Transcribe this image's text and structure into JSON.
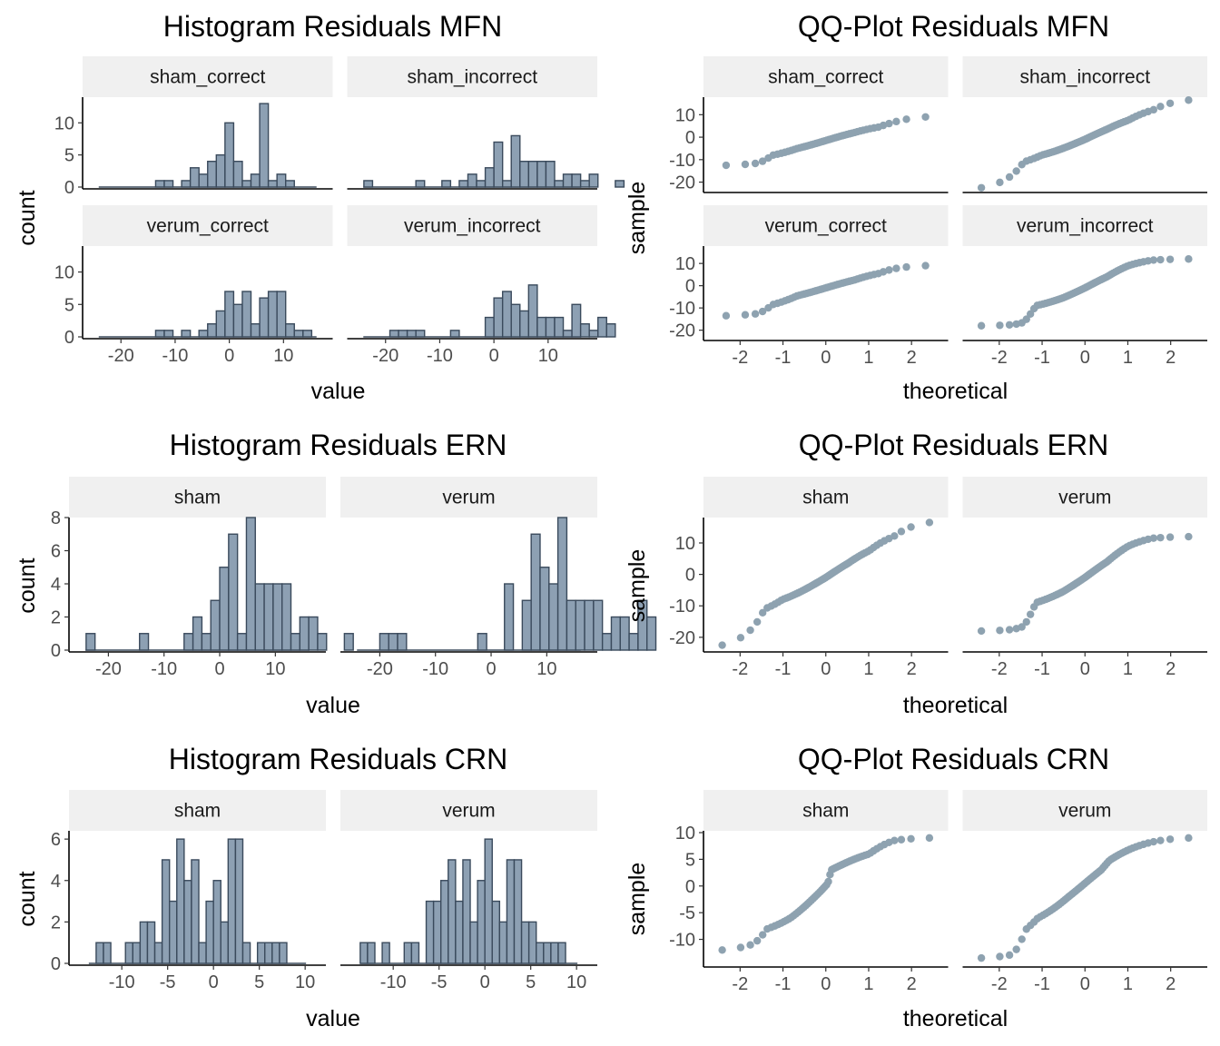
{
  "chart_data": [
    {
      "type": "histogram",
      "title": "Histogram Residuals MFN",
      "xlabel": "value",
      "ylabel": "count",
      "xlim": [
        -25,
        17
      ],
      "ylim": [
        0,
        14
      ],
      "xticks": [
        -20,
        -10,
        0,
        10
      ],
      "yticks": [
        0,
        5,
        10
      ],
      "bin_width": 1.6,
      "bins_start": -24,
      "panels": [
        {
          "name": "sham_correct",
          "start": -13.6,
          "counts": [
            1,
            1,
            0,
            1,
            3,
            2,
            4,
            5,
            10,
            4,
            1,
            2,
            13,
            1,
            2,
            1
          ]
        },
        {
          "name": "sham_incorrect",
          "start": -24,
          "counts": [
            1,
            0,
            0,
            0,
            0,
            0,
            1,
            0,
            0,
            1,
            0,
            1,
            2,
            1,
            3,
            7,
            1,
            8,
            4,
            4,
            4,
            4,
            1,
            2,
            2,
            1,
            2,
            0,
            0,
            1
          ]
        },
        {
          "name": "verum_correct",
          "start": -13.6,
          "counts": [
            1,
            1,
            0,
            1,
            0,
            1,
            2,
            4,
            7,
            5,
            7,
            2,
            6,
            7,
            7,
            2,
            1,
            1
          ]
        },
        {
          "name": "verum_incorrect",
          "start": -19.2,
          "counts": [
            1,
            1,
            1,
            1,
            0,
            0,
            0,
            1,
            0,
            0,
            0,
            3,
            6,
            7,
            5,
            4,
            8,
            3,
            3,
            3,
            1,
            5,
            2,
            1,
            3,
            2
          ]
        }
      ]
    },
    {
      "type": "scatter",
      "title": "QQ-Plot Residuals MFN",
      "xlabel": "theoretical",
      "ylabel": "sample",
      "xlim": [
        -2.6,
        2.6
      ],
      "ylim": [
        -23,
        17
      ],
      "xticks": [
        -2,
        -1,
        0,
        1,
        2
      ],
      "yticks": [
        -20,
        -10,
        0,
        10
      ],
      "panels": [
        {
          "name": "sham_correct",
          "n": 50,
          "quantiles": [
            [
              0,
              -12.5
            ],
            [
              0.05,
              -11.5
            ],
            [
              0.1,
              -8
            ],
            [
              0.25,
              -5
            ],
            [
              0.5,
              -1.5
            ],
            [
              0.75,
              2
            ],
            [
              0.9,
              4.5
            ],
            [
              0.95,
              6.5
            ],
            [
              1,
              9
            ]
          ]
        },
        {
          "name": "sham_incorrect",
          "n": 64,
          "quantiles": [
            [
              0,
              -22.5
            ],
            [
              0.04,
              -16.5
            ],
            [
              0.07,
              -11
            ],
            [
              0.15,
              -8
            ],
            [
              0.3,
              -5
            ],
            [
              0.5,
              -1
            ],
            [
              0.7,
              3.5
            ],
            [
              0.85,
              7.5
            ],
            [
              0.95,
              12
            ],
            [
              1,
              16.5
            ]
          ]
        },
        {
          "name": "verum_correct",
          "n": 50,
          "quantiles": [
            [
              0,
              -13.5
            ],
            [
              0.05,
              -12.5
            ],
            [
              0.1,
              -8.5
            ],
            [
              0.25,
              -4.5
            ],
            [
              0.5,
              -1
            ],
            [
              0.75,
              2.5
            ],
            [
              0.9,
              5.5
            ],
            [
              0.95,
              7.5
            ],
            [
              1,
              9
            ]
          ]
        },
        {
          "name": "verum_incorrect",
          "n": 64,
          "quantiles": [
            [
              0,
              -18
            ],
            [
              0.04,
              -17.5
            ],
            [
              0.07,
              -16.5
            ],
            [
              0.12,
              -9
            ],
            [
              0.3,
              -5.5
            ],
            [
              0.5,
              -1
            ],
            [
              0.7,
              4
            ],
            [
              0.85,
              9
            ],
            [
              0.95,
              11.5
            ],
            [
              1,
              12
            ]
          ]
        }
      ]
    },
    {
      "type": "histogram",
      "title": "Histogram Residuals ERN",
      "xlabel": "value",
      "ylabel": "count",
      "xlim": [
        -25,
        17
      ],
      "ylim": [
        0,
        8
      ],
      "xticks": [
        -20,
        -10,
        0,
        10
      ],
      "yticks": [
        0,
        2,
        4,
        6,
        8
      ],
      "bin_width": 1.6,
      "panels": [
        {
          "name": "sham",
          "start": -24,
          "counts": [
            1,
            0,
            0,
            0,
            0,
            0,
            1,
            0,
            0,
            0,
            0,
            1,
            2,
            1,
            3,
            5,
            7,
            1,
            8,
            4,
            4,
            4,
            4,
            1,
            2,
            2,
            1,
            0,
            0,
            1
          ]
        },
        {
          "name": "verum",
          "start": -21.6,
          "counts": [
            0,
            1,
            1,
            1,
            0,
            0,
            0,
            0,
            0,
            0,
            0,
            0,
            1,
            0,
            0,
            4,
            0,
            3,
            7,
            5,
            4,
            8,
            3,
            3,
            3,
            3,
            1,
            2,
            2,
            1,
            3,
            2
          ]
        }
      ]
    },
    {
      "type": "scatter",
      "title": "QQ-Plot Residuals ERN",
      "xlabel": "theoretical",
      "ylabel": "sample",
      "xlim": [
        -2.6,
        2.6
      ],
      "ylim": [
        -23.5,
        17.5
      ],
      "xticks": [
        -2,
        -1,
        0,
        1,
        2
      ],
      "yticks": [
        -20,
        -10,
        0,
        10
      ],
      "panels": [
        {
          "name": "sham",
          "n": 64,
          "quantiles": [
            [
              0,
              -22.5
            ],
            [
              0.04,
              -16.5
            ],
            [
              0.07,
              -11
            ],
            [
              0.15,
              -8
            ],
            [
              0.3,
              -5
            ],
            [
              0.5,
              -1
            ],
            [
              0.7,
              3.5
            ],
            [
              0.85,
              7.5
            ],
            [
              0.95,
              12
            ],
            [
              1,
              16.5
            ]
          ]
        },
        {
          "name": "verum",
          "n": 64,
          "quantiles": [
            [
              0,
              -18
            ],
            [
              0.04,
              -17.5
            ],
            [
              0.07,
              -16.5
            ],
            [
              0.12,
              -9
            ],
            [
              0.3,
              -5.5
            ],
            [
              0.5,
              -1
            ],
            [
              0.7,
              4
            ],
            [
              0.85,
              9
            ],
            [
              0.95,
              11.5
            ],
            [
              1,
              12
            ]
          ]
        }
      ]
    },
    {
      "type": "histogram",
      "title": "Histogram Residuals CRN",
      "xlabel": "value",
      "ylabel": "count",
      "xlim": [
        -14.5,
        11
      ],
      "ylim": [
        0,
        6.4
      ],
      "xticks": [
        -10,
        -5,
        0,
        5,
        10
      ],
      "yticks": [
        0,
        2,
        4,
        6
      ],
      "bin_width": 0.8,
      "panels": [
        {
          "name": "sham",
          "start": -13.6,
          "counts": [
            0,
            1,
            1,
            0,
            0,
            1,
            1,
            2,
            2,
            1,
            5,
            3,
            6,
            4,
            5,
            1,
            3,
            4,
            2,
            6,
            6,
            1,
            0,
            1,
            1,
            1,
            1,
            0
          ]
        },
        {
          "name": "verum",
          "start": -13.6,
          "counts": [
            1,
            1,
            0,
            1,
            0,
            0,
            1,
            1,
            0,
            3,
            3,
            4,
            5,
            3,
            5,
            2,
            4,
            6,
            3,
            2,
            5,
            5,
            2,
            2,
            1,
            1,
            1,
            1
          ]
        }
      ]
    },
    {
      "type": "scatter",
      "title": "QQ-Plot Residuals CRN",
      "xlabel": "theoretical",
      "ylabel": "sample",
      "xlim": [
        -2.6,
        2.6
      ],
      "ylim": [
        -14.5,
        10
      ],
      "xticks": [
        -2,
        -1,
        0,
        1,
        2
      ],
      "yticks": [
        -10,
        -5,
        0,
        5,
        10
      ],
      "panels": [
        {
          "name": "sham",
          "n": 64,
          "quantiles": [
            [
              0,
              -12
            ],
            [
              0.04,
              -10.8
            ],
            [
              0.08,
              -8
            ],
            [
              0.2,
              -6
            ],
            [
              0.35,
              -3
            ],
            [
              0.45,
              -1
            ],
            [
              0.52,
              0.5
            ],
            [
              0.55,
              3
            ],
            [
              0.7,
              4.5
            ],
            [
              0.85,
              6
            ],
            [
              0.95,
              8.5
            ],
            [
              1,
              9
            ]
          ]
        },
        {
          "name": "verum",
          "n": 64,
          "quantiles": [
            [
              0,
              -13.5
            ],
            [
              0.04,
              -12.8
            ],
            [
              0.08,
              -8
            ],
            [
              0.13,
              -6
            ],
            [
              0.35,
              -2
            ],
            [
              0.5,
              0.5
            ],
            [
              0.65,
              3
            ],
            [
              0.72,
              4.8
            ],
            [
              0.9,
              7.5
            ],
            [
              1,
              9
            ]
          ]
        }
      ]
    }
  ]
}
